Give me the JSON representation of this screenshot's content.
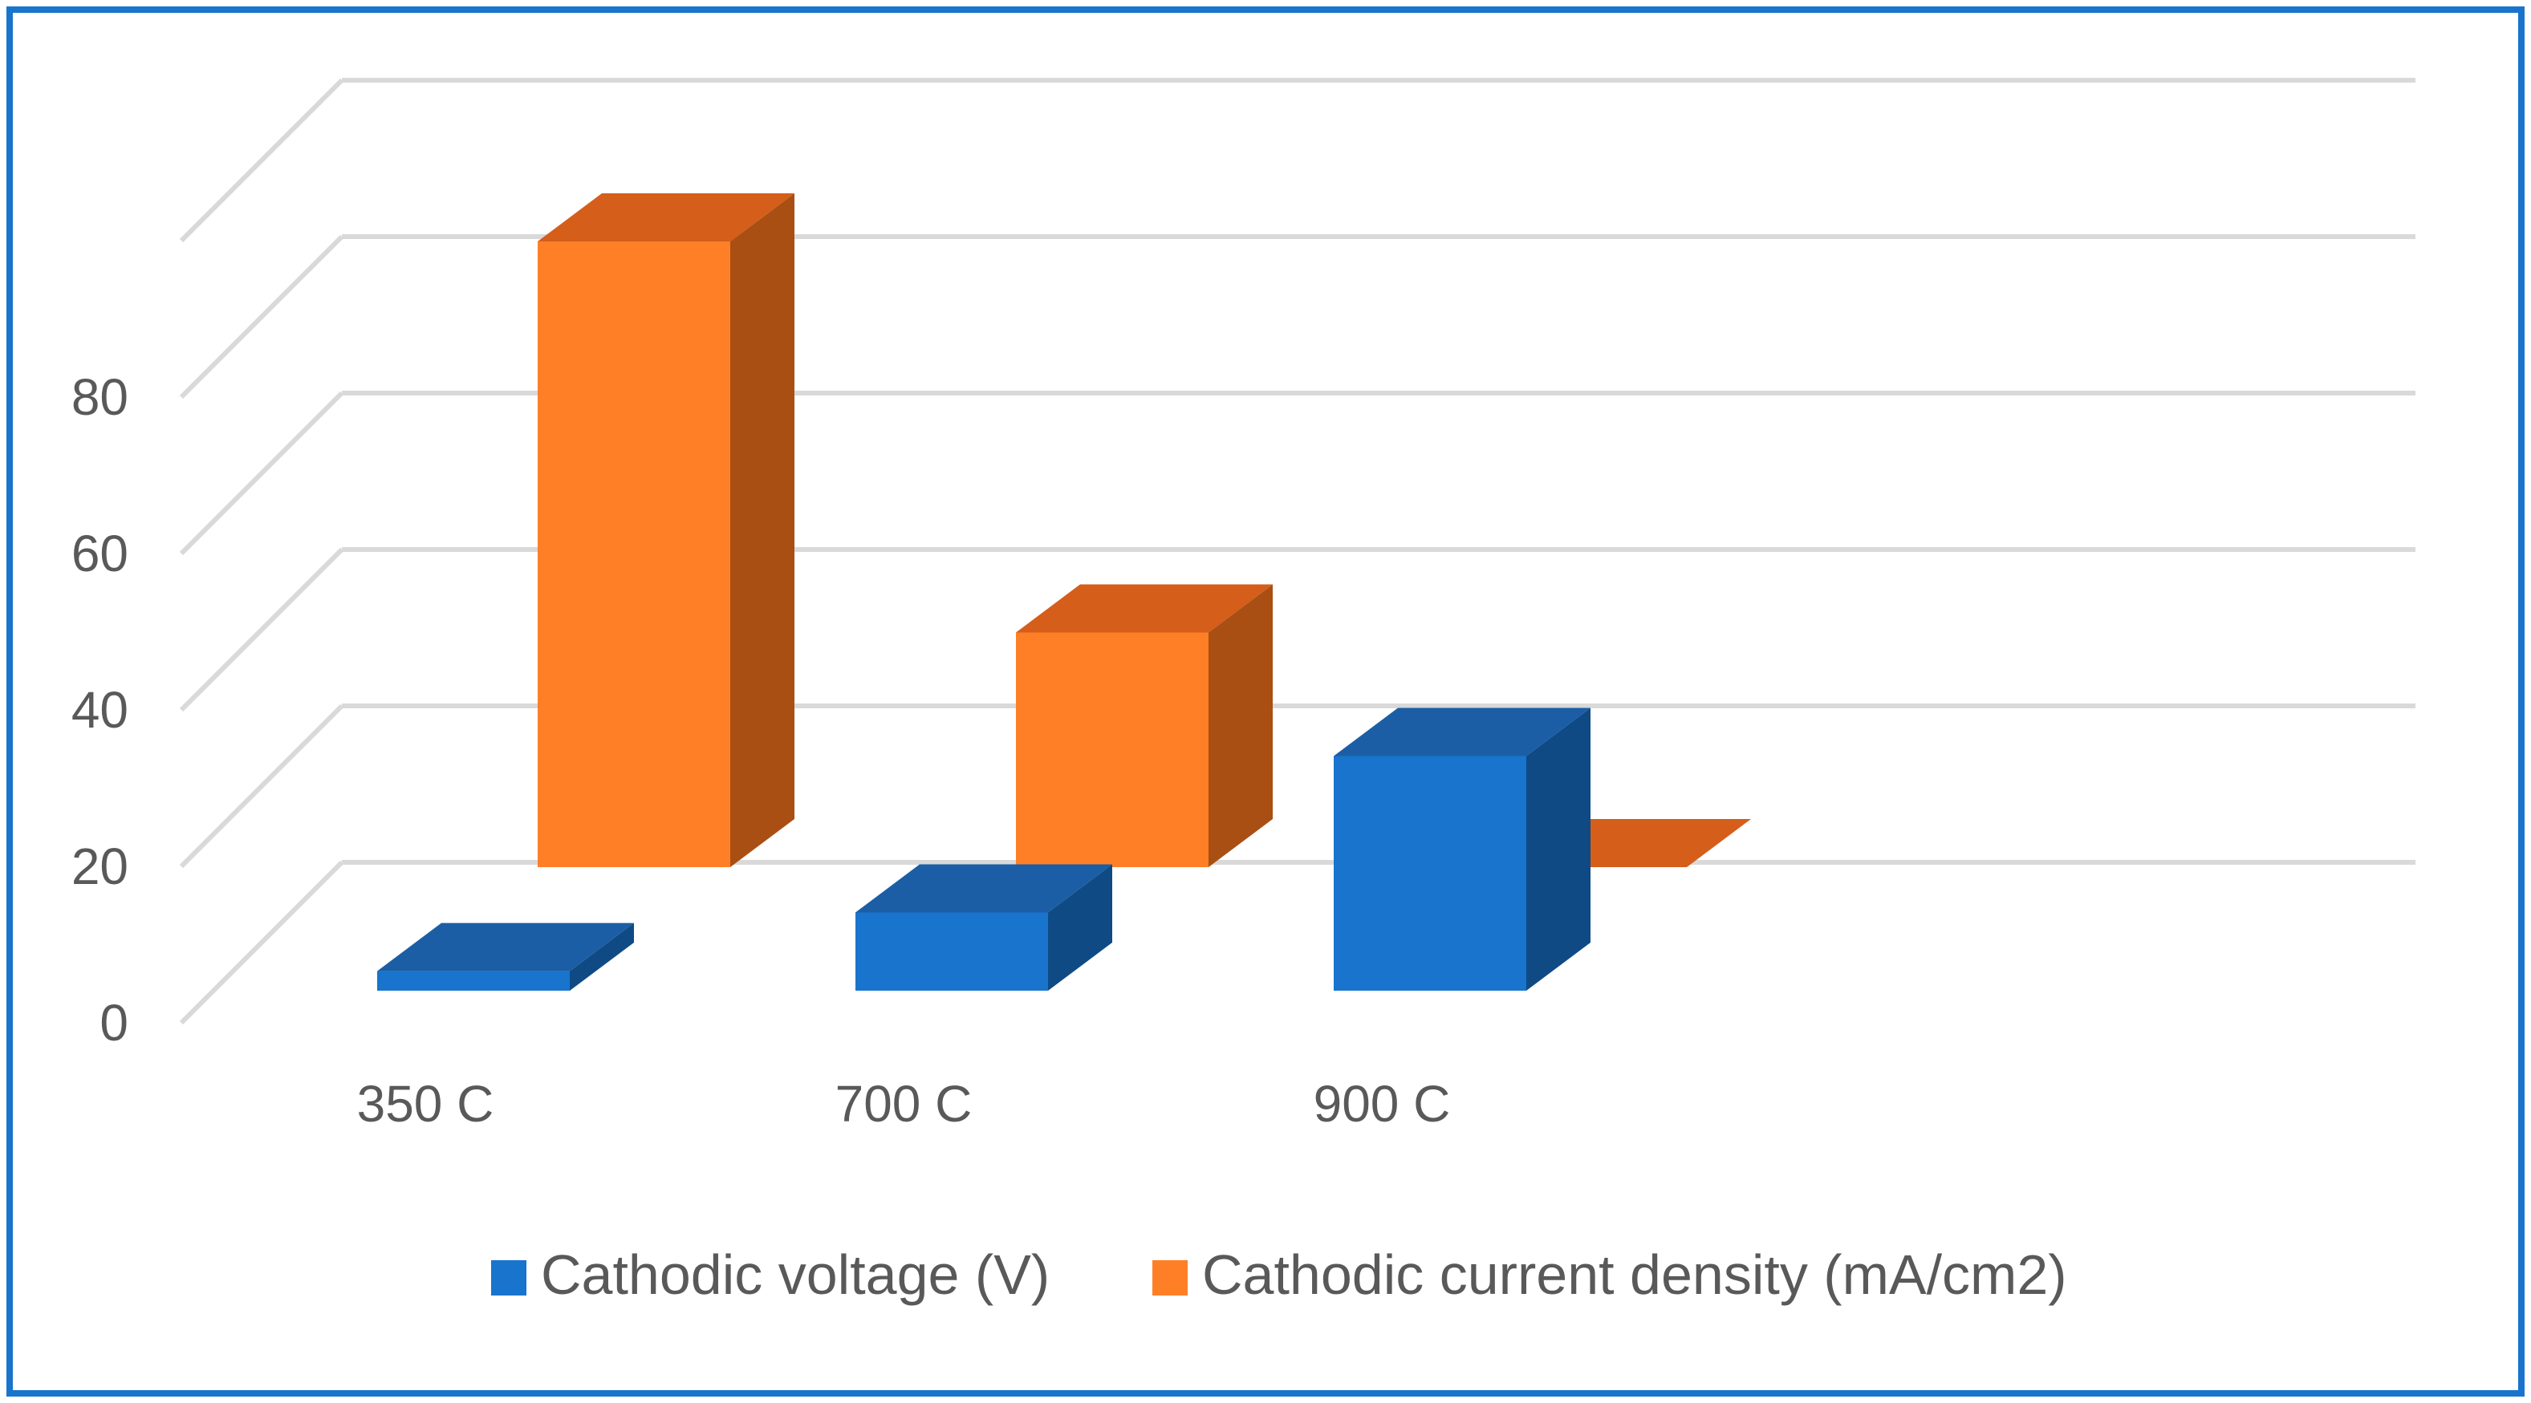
{
  "chart_data": {
    "type": "bar",
    "variant": "3d-column-depth",
    "categories": [
      "350 C",
      "700 C",
      "900 C"
    ],
    "series": [
      {
        "name": "Cathodic voltage (V)",
        "values": [
          2.5,
          10,
          30
        ]
      },
      {
        "name": "Cathodic current density (mA/cm2)",
        "values": [
          80,
          30,
          0
        ]
      }
    ],
    "yticks": [
      "0",
      "20",
      "40",
      "60",
      "80"
    ],
    "ylim": [
      0,
      100
    ],
    "grid": true,
    "legend": "bottom",
    "colors": {
      "voltage_front": "#1874CD",
      "voltage_top": "#1B5EA5",
      "voltage_side": "#0F4A85",
      "current_front": "#FF7F27",
      "current_top": "#D45E1A",
      "current_side": "#A94F13",
      "grid": "#d9d9d9",
      "text": "#595959",
      "frame": "#1874CD"
    }
  }
}
